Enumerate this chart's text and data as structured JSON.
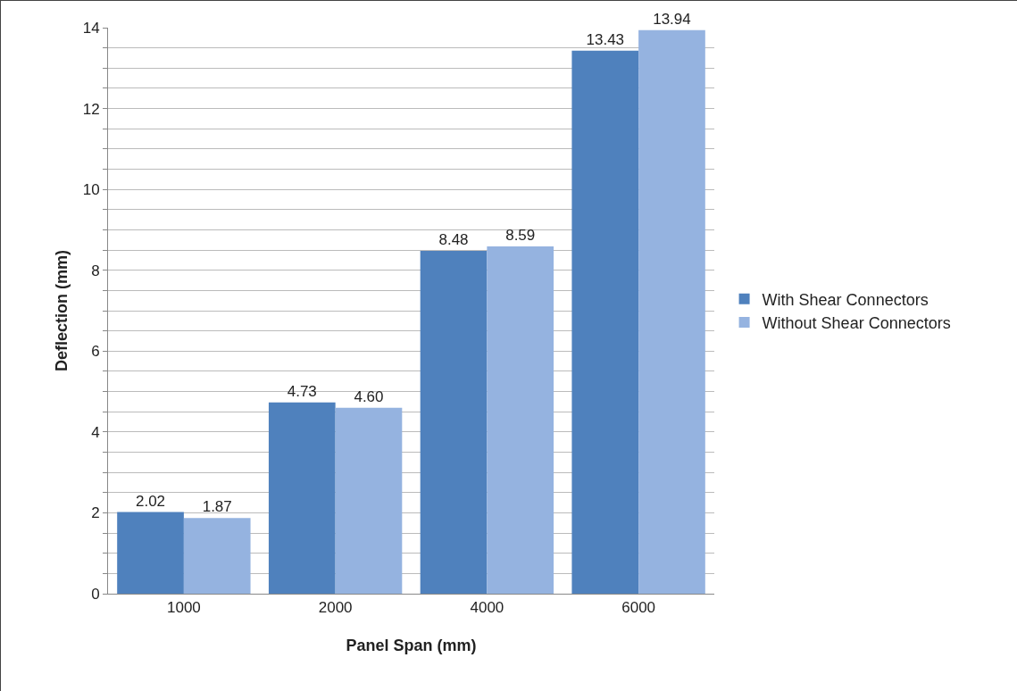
{
  "chart_data": {
    "type": "bar",
    "xlabel": "Panel Span (mm)",
    "ylabel": "Deflection (mm)",
    "categories": [
      "1000",
      "2000",
      "4000",
      "6000"
    ],
    "series": [
      {
        "name": "With Shear Connectors",
        "color": "#4f81bd",
        "values": [
          2.02,
          4.73,
          8.48,
          13.43
        ],
        "value_labels": [
          "2.02",
          "4.73",
          "8.48",
          "13.43"
        ]
      },
      {
        "name": "Without Shear Connectors",
        "color": "#95b3e0",
        "values": [
          1.87,
          4.6,
          8.59,
          13.94
        ],
        "value_labels": [
          "1.87",
          "4.60",
          "8.59",
          "13.94"
        ]
      }
    ],
    "ylim": [
      0,
      14
    ],
    "yticks": [
      0,
      {
        "value": 0.5,
        "label": null
      },
      {
        "value": 1,
        "label": null
      },
      {
        "value": 1.5,
        "label": null
      },
      2,
      {
        "value": 2.5,
        "label": null
      },
      {
        "value": 3,
        "label": null
      },
      {
        "value": 3.5,
        "label": null
      },
      4,
      {
        "value": 4.5,
        "label": null
      },
      {
        "value": 5,
        "label": null
      },
      {
        "value": 5.5,
        "label": null
      },
      6,
      {
        "value": 6.5,
        "label": null
      },
      {
        "value": 7,
        "label": null
      },
      {
        "value": 7.5,
        "label": null
      },
      8,
      {
        "value": 8.5,
        "label": null
      },
      {
        "value": 9,
        "label": null
      },
      {
        "value": 9.5,
        "label": null
      },
      10,
      {
        "value": 10.5,
        "label": null
      },
      {
        "value": 11,
        "label": null
      },
      {
        "value": 11.5,
        "label": null
      },
      12,
      {
        "value": 12.5,
        "label": null
      },
      {
        "value": 13,
        "label": null
      },
      {
        "value": 13.5,
        "label": null
      },
      14
    ],
    "grid": "y",
    "legend": "right"
  }
}
